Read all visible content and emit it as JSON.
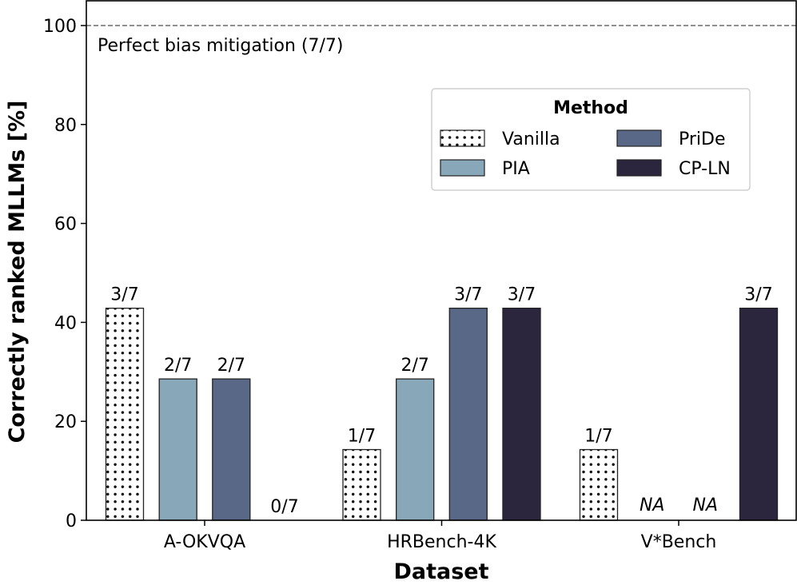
{
  "chart_data": {
    "type": "bar",
    "title": "",
    "xlabel": "Dataset",
    "ylabel": "Correctly ranked MLLMs [%]",
    "ylim": [
      0,
      105
    ],
    "yticks": [
      0,
      20,
      40,
      60,
      80,
      100
    ],
    "grid": false,
    "categories": [
      "A-OKVQA",
      "HRBench-4K",
      "V*Bench"
    ],
    "series": [
      {
        "name": "Vanilla",
        "color": "#ffffff",
        "pattern": "dots",
        "values": [
          42.86,
          14.29,
          14.29
        ],
        "labels": [
          "3/7",
          "1/7",
          "1/7"
        ]
      },
      {
        "name": "PIA",
        "color": "#88a7b9",
        "values": [
          28.57,
          28.57,
          null
        ],
        "labels": [
          "2/7",
          "2/7",
          "NA"
        ]
      },
      {
        "name": "PriDe",
        "color": "#5a6887",
        "values": [
          28.57,
          42.86,
          null
        ],
        "labels": [
          "2/7",
          "3/7",
          "NA"
        ]
      },
      {
        "name": "CP-LN",
        "color": "#2b263d",
        "values": [
          0,
          42.86,
          42.86
        ],
        "labels": [
          "0/7",
          "3/7",
          "3/7"
        ]
      }
    ],
    "reference_line": {
      "value": 100,
      "style": "dashed",
      "color": "#777777",
      "label": "Perfect bias mitigation (7/7)"
    },
    "legend": {
      "title": "Method",
      "placement": "upper-right",
      "columns": 2
    }
  }
}
